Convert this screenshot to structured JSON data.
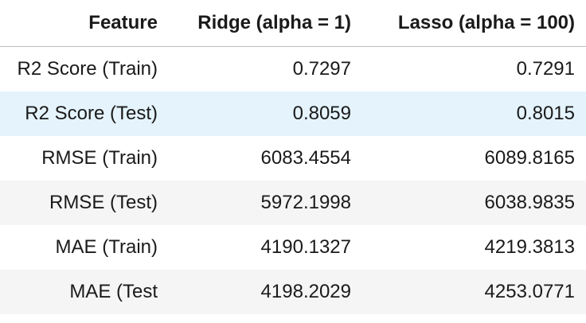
{
  "table": {
    "columns": [
      "Feature",
      "Ridge (alpha = 1)",
      "Lasso (alpha = 100)"
    ],
    "rows": [
      {
        "feature": "R2 Score (Train)",
        "ridge": "0.7297",
        "lasso": "0.7291"
      },
      {
        "feature": "R2 Score (Test)",
        "ridge": "0.8059",
        "lasso": "0.8015"
      },
      {
        "feature": "RMSE (Train)",
        "ridge": "6083.4554",
        "lasso": "6089.8165"
      },
      {
        "feature": "RMSE (Test)",
        "ridge": "5972.1998",
        "lasso": "6038.9835"
      },
      {
        "feature": "MAE (Train)",
        "ridge": "4190.1327",
        "lasso": "4219.3813"
      },
      {
        "feature": "MAE (Test",
        "ridge": "4198.2029",
        "lasso": "4253.0771"
      }
    ],
    "highlight_color": "#e4f3fc",
    "stripe_color": "#f5f5f5"
  }
}
